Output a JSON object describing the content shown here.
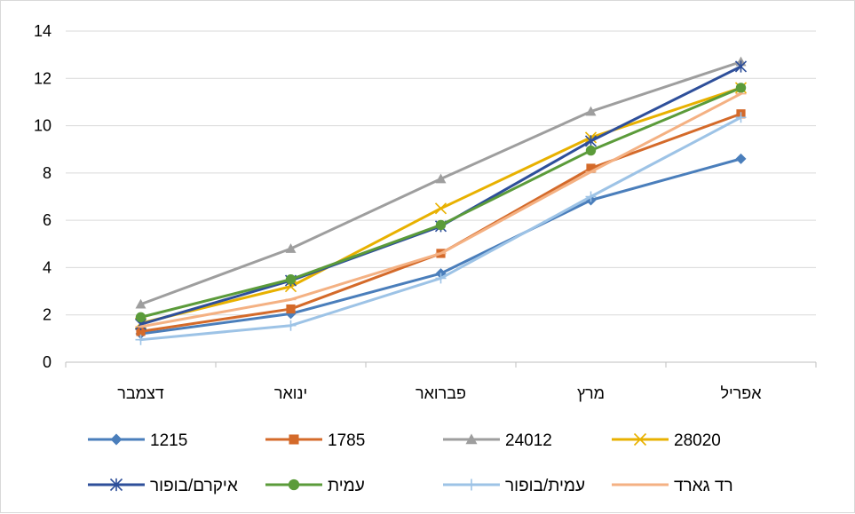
{
  "chart_data": {
    "type": "line",
    "categories": [
      "דצמבר",
      "ינואר",
      "פברואר",
      "מרץ",
      "אפריל"
    ],
    "ylim": [
      0,
      14
    ],
    "yticks": [
      0,
      2,
      4,
      6,
      8,
      10,
      12,
      14
    ],
    "grid": true,
    "legend_position": "bottom",
    "series": [
      {
        "name": "1215",
        "color": "#4A7EBB",
        "marker": "diamond",
        "values": [
          1.2,
          2.05,
          3.75,
          6.85,
          8.6
        ]
      },
      {
        "name": "1785",
        "color": "#D46A2A",
        "marker": "square",
        "values": [
          1.3,
          2.25,
          4.6,
          8.2,
          10.5
        ]
      },
      {
        "name": "24012",
        "color": "#9E9E9E",
        "marker": "triangle",
        "values": [
          2.45,
          4.8,
          7.75,
          10.6,
          12.7
        ]
      },
      {
        "name": "28020",
        "color": "#E8B100",
        "marker": "x",
        "values": [
          1.65,
          3.2,
          6.5,
          9.5,
          11.6
        ]
      },
      {
        "name": "איקרם/בופור",
        "color": "#2E4F9A",
        "marker": "star",
        "values": [
          1.6,
          3.45,
          5.75,
          9.35,
          12.5
        ]
      },
      {
        "name": "עמית",
        "color": "#5B9B3A",
        "marker": "circle",
        "values": [
          1.9,
          3.5,
          5.8,
          8.95,
          11.6
        ]
      },
      {
        "name": "עמית/בופור",
        "color": "#9DC3E6",
        "marker": "plus",
        "values": [
          0.95,
          1.55,
          3.55,
          7.0,
          10.35
        ]
      },
      {
        "name": "רד גארד",
        "color": "#F4B183",
        "marker": "dash",
        "values": [
          1.5,
          2.65,
          4.6,
          8.05,
          11.35
        ]
      }
    ]
  }
}
